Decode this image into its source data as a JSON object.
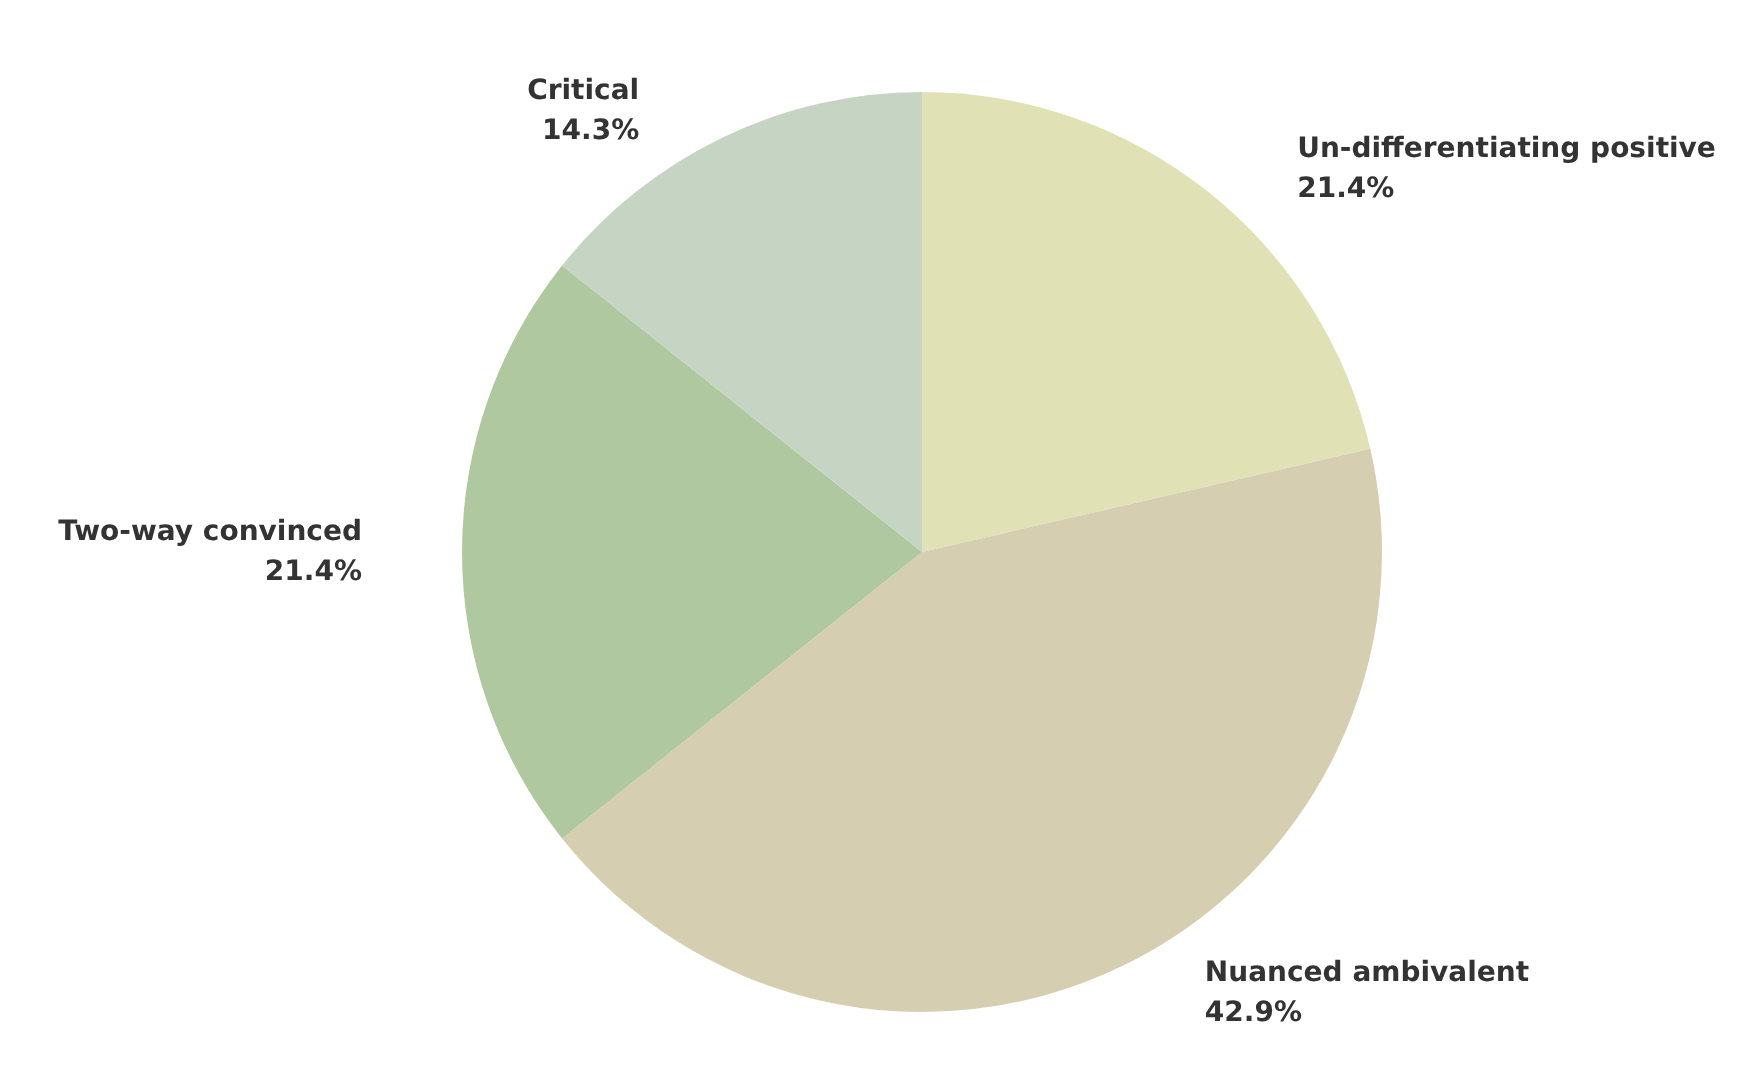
{
  "chart_data": {
    "type": "pie",
    "categories": [
      "Un-differentiating positive",
      "Nuanced ambivalent",
      "Two-way convinced",
      "Critical"
    ],
    "values": [
      21.4,
      42.9,
      21.4,
      14.3
    ],
    "value_labels": [
      "21.4%",
      "42.9%",
      "21.4%",
      "14.3%"
    ],
    "colors": [
      "#e0e2b5",
      "#d6ceb0",
      "#b0c8a0",
      "#c5d4c3"
    ],
    "legend": false
  }
}
